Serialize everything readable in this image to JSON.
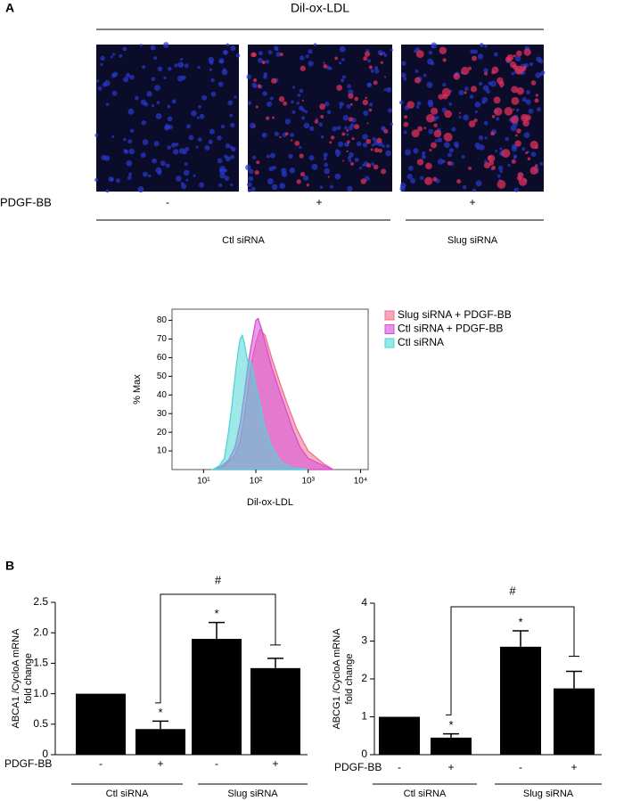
{
  "panel_a": {
    "label": "A",
    "title": "Dil-ox-LDL",
    "treatment_label": "PDGF-BB",
    "conditions": [
      "-",
      "+",
      "+"
    ],
    "groups": [
      "Ctl siRNA",
      "Slug siRNA"
    ]
  },
  "panel_b": {
    "label": "B"
  },
  "chart_data": [
    {
      "type": "area",
      "xlabel": "Dil-ox-LDL",
      "ylabel": "% Max",
      "log_x": true,
      "xlim": [
        2.5,
        14000
      ],
      "xticks": [
        {
          "value": 10,
          "label": "10¹"
        },
        {
          "value": 100,
          "label": "10²"
        },
        {
          "value": 1000,
          "label": "10³"
        },
        {
          "value": 10000,
          "label": "10⁴"
        }
      ],
      "ylim": [
        0,
        86
      ],
      "yticks": [
        10,
        20,
        30,
        40,
        50,
        60,
        70,
        80
      ],
      "legend": "top-right",
      "series": [
        {
          "name": "Slug siRNA + PDGF-BB",
          "color": "#f26d8c",
          "x": [
            15,
            25,
            40,
            50,
            60,
            70,
            80,
            100,
            120,
            150,
            200,
            300,
            400,
            600,
            800,
            1000,
            2000,
            3000
          ],
          "values": [
            0,
            2,
            8,
            15,
            28,
            42,
            55,
            68,
            75,
            72,
            60,
            45,
            35,
            22,
            15,
            10,
            3,
            0
          ]
        },
        {
          "name": "Ctl siRNA + PDGF-BB",
          "color": "#d44fd8",
          "x": [
            15,
            20,
            30,
            40,
            50,
            60,
            70,
            80,
            90,
            100,
            110,
            130,
            150,
            200,
            300,
            400,
            500,
            700,
            1000,
            2000,
            3000
          ],
          "values": [
            0,
            1,
            5,
            12,
            25,
            40,
            55,
            65,
            73,
            80,
            81,
            75,
            68,
            55,
            40,
            30,
            22,
            12,
            6,
            2,
            0
          ]
        },
        {
          "name": "Ctl siRNA",
          "color": "#4fd6d6",
          "x": [
            15,
            20,
            25,
            30,
            35,
            40,
            45,
            50,
            55,
            60,
            70,
            80,
            100,
            120,
            150,
            200,
            300,
            500,
            1000
          ],
          "values": [
            0,
            2,
            6,
            20,
            35,
            50,
            62,
            70,
            72,
            68,
            58,
            58,
            45,
            35,
            22,
            12,
            4,
            1,
            0
          ]
        }
      ]
    },
    {
      "type": "bar",
      "ylabel": [
        "ABCA1 /CycloA mRNA",
        "fold change"
      ],
      "category_label": "PDGF-BB",
      "categories": [
        "-",
        "+",
        "-",
        "+"
      ],
      "groups": [
        "Ctl siRNA",
        "Slug siRNA"
      ],
      "values": [
        1.0,
        0.42,
        1.9,
        1.42
      ],
      "errors": [
        0,
        0.13,
        0.27,
        0.16
      ],
      "value_labels": [
        null,
        "*",
        "*",
        null
      ],
      "bracket_label": "#",
      "color": "#000000",
      "ylim": [
        0,
        2.5
      ],
      "yticks": [
        0,
        {
          "value": 0.5,
          "label": "0.5"
        },
        {
          "value": 1,
          "label": "1.0"
        },
        {
          "value": 1.5,
          "label": "1.5"
        },
        {
          "value": 2,
          "label": "2.0"
        },
        {
          "value": 2.5,
          "label": "2.5"
        }
      ]
    },
    {
      "type": "bar",
      "ylabel": [
        "ABCG1 /CycloA mRNA",
        "fold change"
      ],
      "category_label": "PDGF-BB",
      "categories": [
        "-",
        "+",
        "-",
        "+"
      ],
      "groups": [
        "Ctl siRNA",
        "Slug siRNA"
      ],
      "values": [
        1.0,
        0.45,
        2.85,
        1.75
      ],
      "errors": [
        0,
        0.1,
        0.42,
        0.45
      ],
      "value_labels": [
        null,
        "*",
        "*",
        null
      ],
      "bracket_label": "#",
      "color": "#000000",
      "ylim": [
        0,
        4
      ],
      "yticks": [
        0,
        1,
        2,
        3,
        4
      ]
    }
  ]
}
